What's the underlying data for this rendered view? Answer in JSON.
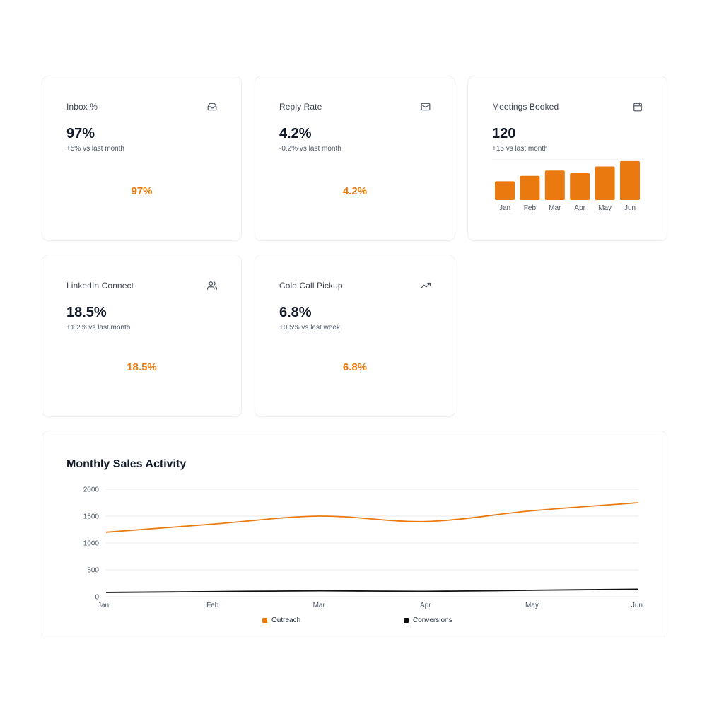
{
  "colors": {
    "accent": "#ea7a10",
    "dark": "#111111",
    "grid": "#e8e8eb",
    "muted": "#4b5563"
  },
  "cards": [
    {
      "title": "Inbox %",
      "icon": "inbox-icon",
      "value": "97%",
      "sub": "+5% vs last month",
      "center": "97%"
    },
    {
      "title": "Reply Rate",
      "icon": "mail-icon",
      "value": "4.2%",
      "sub": "-0.2% vs last month",
      "center": "4.2%"
    },
    {
      "title": "Meetings Booked",
      "icon": "calendar-icon",
      "value": "120",
      "sub": "+15 vs last month"
    },
    {
      "title": "LinkedIn Connect",
      "icon": "users-icon",
      "value": "18.5%",
      "sub": "+1.2% vs last month",
      "center": "18.5%"
    },
    {
      "title": "Cold Call Pickup",
      "icon": "trending-up-icon",
      "value": "6.8%",
      "sub": "+0.5% vs last week",
      "center": "6.8%"
    }
  ],
  "chart_data": [
    {
      "type": "bar",
      "categories": [
        "Jan",
        "Feb",
        "Mar",
        "Apr",
        "May",
        "Jun"
      ],
      "values": [
        14,
        18,
        22,
        20,
        25,
        29
      ],
      "ylim": [
        0,
        30
      ],
      "grid": false
    },
    {
      "type": "line",
      "title": "Monthly Sales Activity",
      "categories": [
        "Jan",
        "Feb",
        "Mar",
        "Apr",
        "May",
        "Jun"
      ],
      "series": [
        {
          "name": "Outreach",
          "color": "#ea7a10",
          "values": [
            1200,
            1350,
            1500,
            1400,
            1600,
            1750
          ]
        },
        {
          "name": "Conversions",
          "color": "#111111",
          "values": [
            80,
            95,
            110,
            100,
            120,
            140
          ]
        }
      ],
      "yticks": [
        "0",
        "500",
        "1000",
        "1500",
        "2000"
      ],
      "ylim": [
        0,
        2000
      ],
      "grid": true,
      "legend_position": "bottom"
    }
  ]
}
